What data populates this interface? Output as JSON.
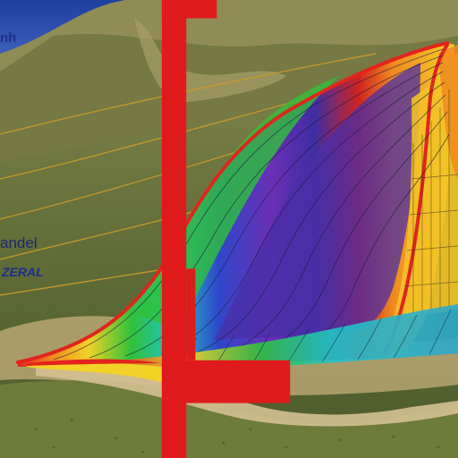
{
  "labels": {
    "top": "nh",
    "mid": "andel",
    "scale": "ZERAL"
  },
  "colors": {
    "sky": "#2a4fa8",
    "hill_dark": "#5b6a35",
    "hill_light": "#8d9358",
    "sand": "#c9b58a",
    "contour_lines": "#c79a2a",
    "band_red": "#e3241d",
    "band_yellow": "#f2d227",
    "band_green": "#2fc23a",
    "band_cyan": "#22c3c9",
    "band_blue": "#2f47c9",
    "band_purple": "#6a2fb5",
    "bracket_red": "#e01b1b"
  },
  "band_order": [
    "red",
    "yellow",
    "green",
    "cyan",
    "blue",
    "purple",
    "red",
    "orange",
    "yellow"
  ]
}
